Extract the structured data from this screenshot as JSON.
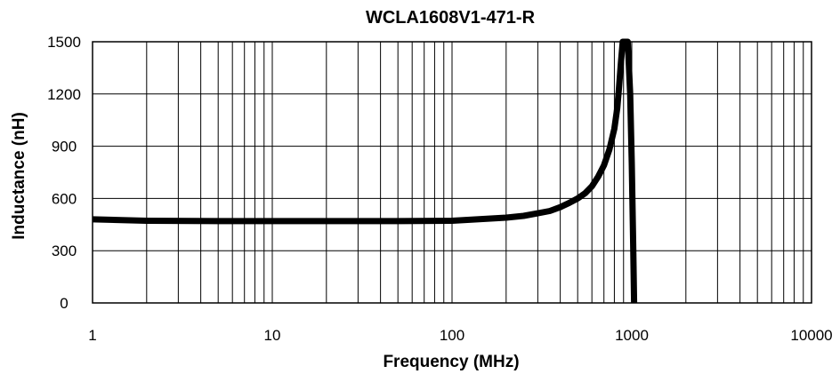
{
  "chart_data": {
    "type": "line",
    "title": "WCLA1608V1-471-R",
    "xlabel": "Frequency (MHz)",
    "ylabel": "Inductance (nH)",
    "x_scale": "log",
    "xlim": [
      1,
      10000
    ],
    "ylim": [
      0,
      1500
    ],
    "x_ticks": [
      1,
      10,
      100,
      1000,
      10000
    ],
    "x_tick_labels": [
      "1",
      "10",
      "100",
      "1000",
      "10000"
    ],
    "y_ticks": [
      0,
      300,
      600,
      900,
      1200,
      1500
    ],
    "y_tick_labels": [
      "0",
      "300",
      "600",
      "900",
      "1200",
      "1500"
    ],
    "grid": true,
    "legend": "none",
    "line_color": "#000000",
    "series": [
      {
        "x": [
          1,
          2,
          5,
          10,
          20,
          50,
          100,
          200,
          250,
          300,
          350,
          400,
          450,
          500,
          550,
          600,
          650,
          700,
          750,
          800,
          830,
          850,
          870,
          890,
          950,
          980,
          1000,
          1020,
          1030
        ],
        "y": [
          480,
          472,
          470,
          470,
          470,
          470,
          472,
          490,
          500,
          515,
          528,
          550,
          575,
          600,
          630,
          670,
          725,
          790,
          880,
          1000,
          1120,
          1240,
          1380,
          1500,
          1500,
          1200,
          800,
          300,
          0
        ]
      }
    ]
  }
}
